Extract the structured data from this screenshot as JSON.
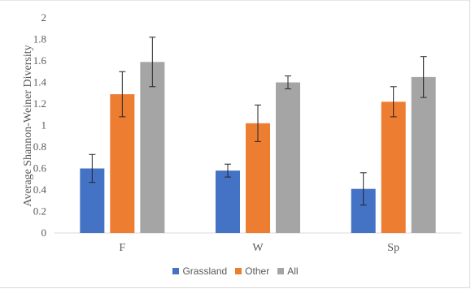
{
  "chart_data": {
    "type": "bar",
    "categories": [
      "F",
      "W",
      "Sp"
    ],
    "series": [
      {
        "name": "Grassland",
        "color": "#4472C4",
        "values": [
          0.6,
          0.58,
          0.41
        ],
        "errors": [
          0.13,
          0.06,
          0.15
        ]
      },
      {
        "name": "Other",
        "color": "#ED7D31",
        "values": [
          1.29,
          1.02,
          1.22
        ],
        "errors": [
          0.21,
          0.17,
          0.14
        ]
      },
      {
        "name": "All",
        "color": "#A5A5A5",
        "values": [
          1.59,
          1.4,
          1.45
        ],
        "errors": [
          0.23,
          0.06,
          0.19
        ]
      }
    ],
    "ylabel": "Average Shannon-Weiner Diversity",
    "ylim": [
      0,
      2
    ],
    "yticks": [
      "0",
      "0.2",
      "0.4",
      "0.6",
      "0.8",
      "1",
      "1.2",
      "1.4",
      "1.6",
      "1.8",
      "2"
    ],
    "grid": false,
    "legend_position": "bottom"
  }
}
